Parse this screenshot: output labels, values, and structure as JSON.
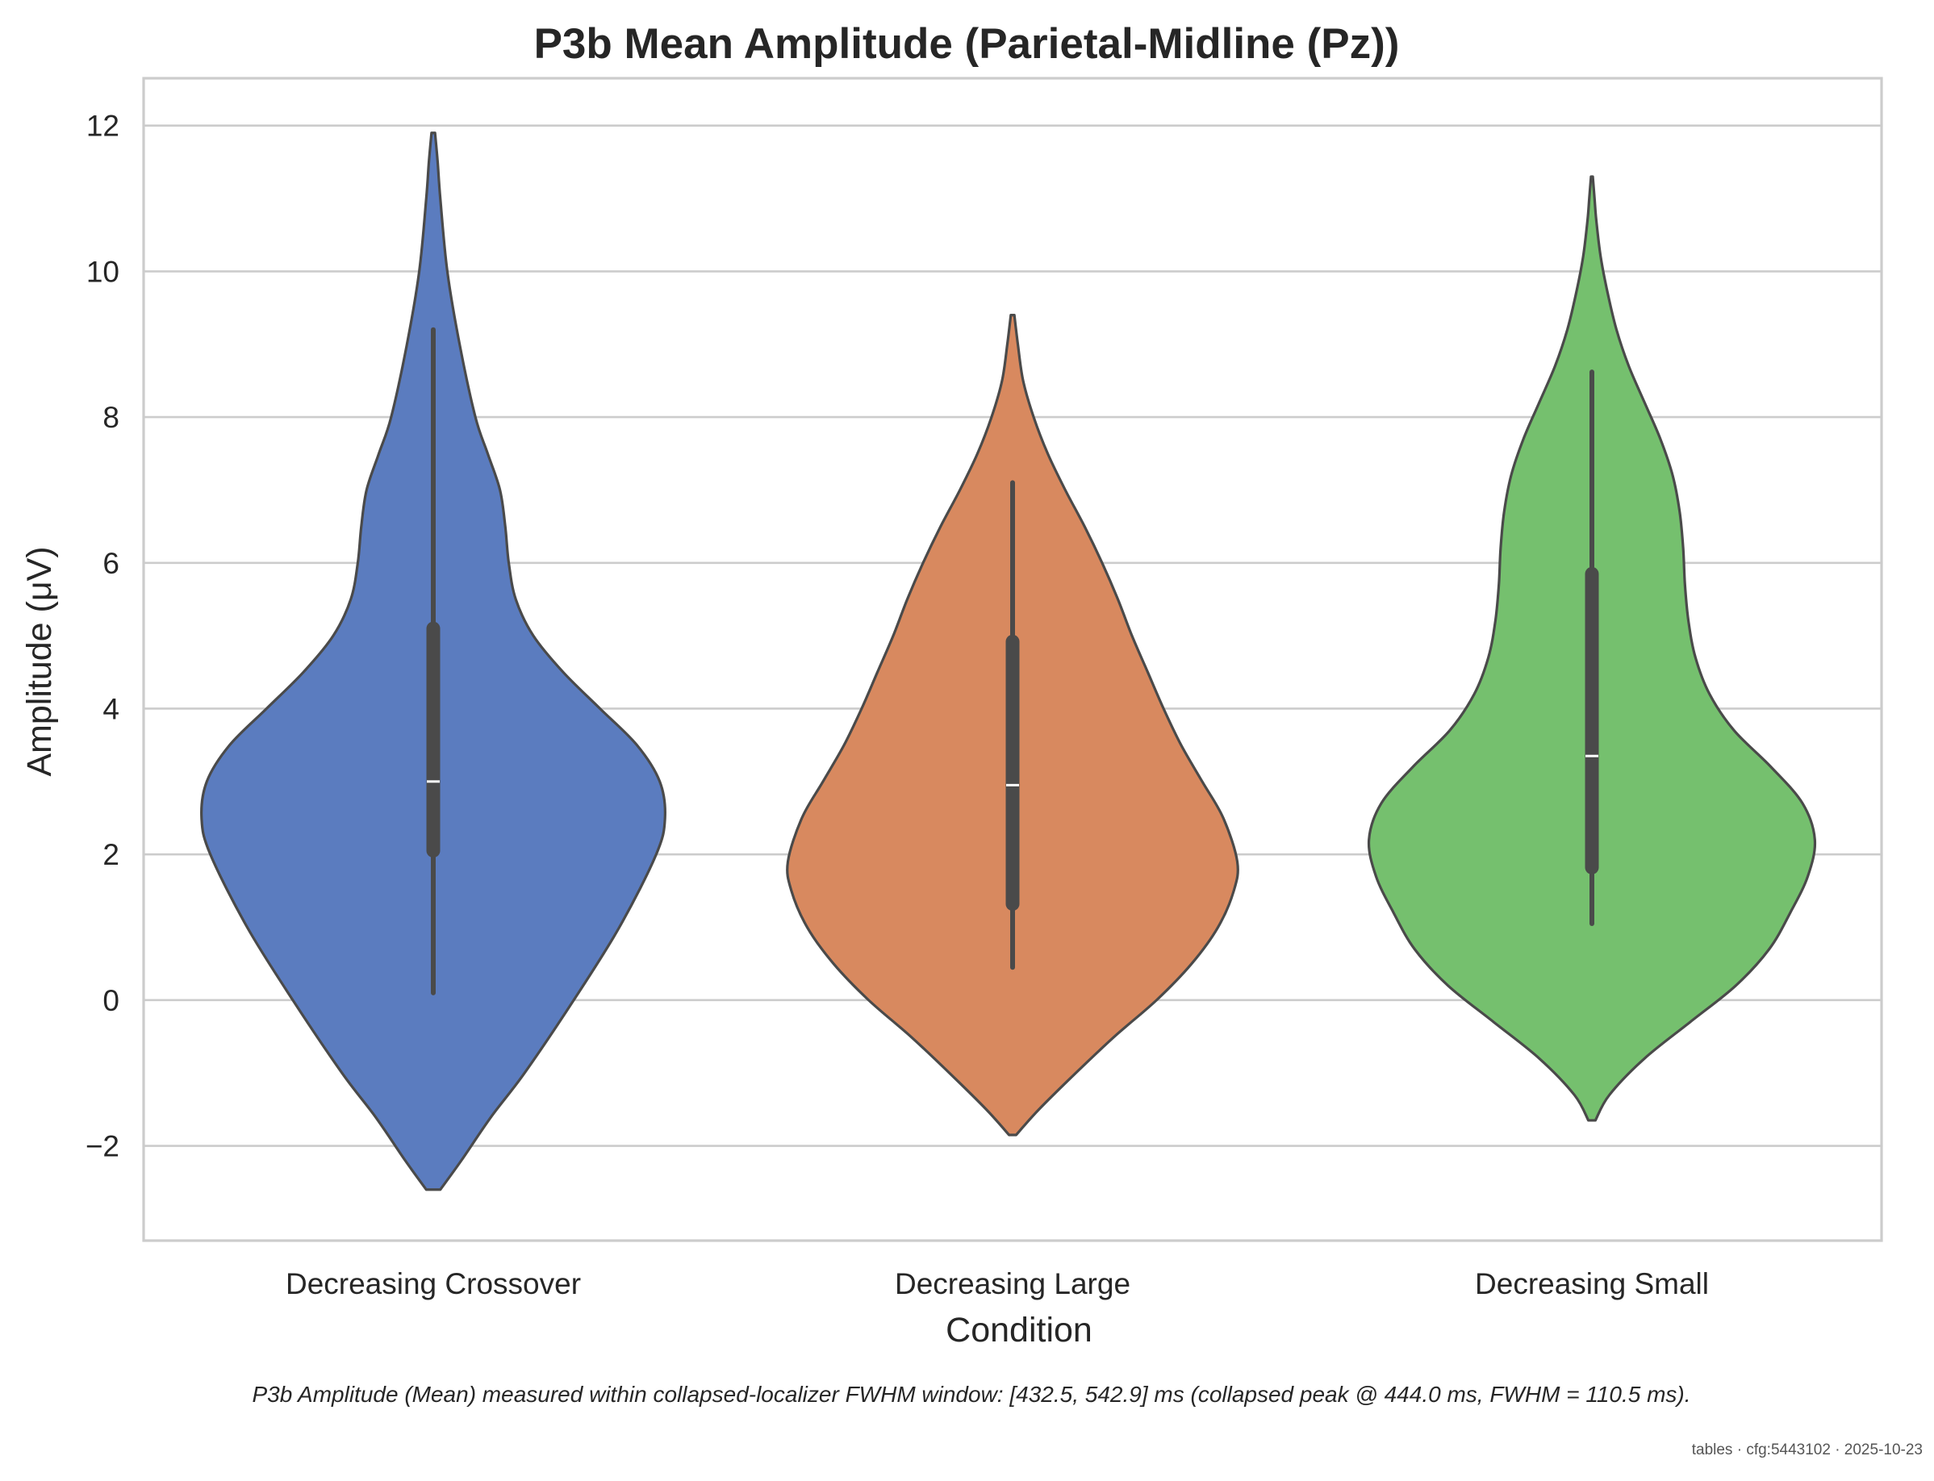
{
  "chart_data": {
    "type": "violin",
    "title": "P3b Mean Amplitude (Parietal-Midline (Pz))",
    "xlabel": "Condition",
    "ylabel": "Amplitude (μV)",
    "ylim": [
      -3.3,
      12.65
    ],
    "yticks": [
      -2,
      0,
      2,
      4,
      6,
      8,
      10,
      12
    ],
    "ytick_labels": [
      "−2",
      "0",
      "2",
      "4",
      "6",
      "8",
      "10",
      "12"
    ],
    "grid": "horizontal",
    "categories": [
      "Decreasing Crossover",
      "Decreasing Large",
      "Decreasing Small"
    ],
    "series": [
      {
        "category": "Decreasing Crossover",
        "color": "#5b7cbf",
        "median": 3.0,
        "q1": 2.05,
        "q3": 5.1,
        "whisker_low": 0.1,
        "whisker_high": 9.2,
        "density": [
          [
            -2.6,
            0.04
          ],
          [
            -2.2,
            0.16
          ],
          [
            -1.6,
            0.33
          ],
          [
            -1.0,
            0.52
          ],
          [
            0.0,
            0.8
          ],
          [
            1.0,
            1.06
          ],
          [
            2.0,
            1.27
          ],
          [
            2.5,
            1.32
          ],
          [
            3.0,
            1.29
          ],
          [
            3.5,
            1.16
          ],
          [
            4.0,
            0.95
          ],
          [
            4.5,
            0.74
          ],
          [
            5.0,
            0.57
          ],
          [
            5.5,
            0.47
          ],
          [
            6.0,
            0.43
          ],
          [
            6.5,
            0.41
          ],
          [
            7.0,
            0.38
          ],
          [
            7.5,
            0.31
          ],
          [
            8.0,
            0.24
          ],
          [
            9.0,
            0.15
          ],
          [
            10.0,
            0.08
          ],
          [
            11.0,
            0.04
          ],
          [
            11.5,
            0.025
          ],
          [
            11.9,
            0.01
          ]
        ]
      },
      {
        "category": "Decreasing Large",
        "color": "#d8895f",
        "median": 2.95,
        "q1": 1.32,
        "q3": 4.92,
        "whisker_low": 0.45,
        "whisker_high": 7.1,
        "density": [
          [
            -1.85,
            0.02
          ],
          [
            -1.5,
            0.15
          ],
          [
            -1.0,
            0.36
          ],
          [
            -0.5,
            0.58
          ],
          [
            0.0,
            0.82
          ],
          [
            0.5,
            1.02
          ],
          [
            1.0,
            1.17
          ],
          [
            1.5,
            1.26
          ],
          [
            1.9,
            1.28
          ],
          [
            2.5,
            1.2
          ],
          [
            3.0,
            1.08
          ],
          [
            3.5,
            0.96
          ],
          [
            4.0,
            0.86
          ],
          [
            4.5,
            0.77
          ],
          [
            5.0,
            0.68
          ],
          [
            5.5,
            0.6
          ],
          [
            6.0,
            0.51
          ],
          [
            6.5,
            0.41
          ],
          [
            7.0,
            0.3
          ],
          [
            7.5,
            0.2
          ],
          [
            8.0,
            0.12
          ],
          [
            8.5,
            0.06
          ],
          [
            9.0,
            0.03
          ],
          [
            9.4,
            0.01
          ]
        ]
      },
      {
        "category": "Decreasing Small",
        "color": "#75c06e",
        "median": 3.35,
        "q1": 1.82,
        "q3": 5.85,
        "whisker_low": 1.05,
        "whisker_high": 8.62,
        "density": [
          [
            -1.65,
            0.02
          ],
          [
            -1.3,
            0.1
          ],
          [
            -0.8,
            0.3
          ],
          [
            -0.3,
            0.56
          ],
          [
            0.2,
            0.82
          ],
          [
            0.7,
            1.01
          ],
          [
            1.2,
            1.13
          ],
          [
            1.7,
            1.23
          ],
          [
            2.2,
            1.27
          ],
          [
            2.7,
            1.2
          ],
          [
            3.2,
            1.02
          ],
          [
            3.7,
            0.81
          ],
          [
            4.2,
            0.67
          ],
          [
            4.7,
            0.59
          ],
          [
            5.2,
            0.55
          ],
          [
            5.7,
            0.53
          ],
          [
            6.2,
            0.52
          ],
          [
            6.7,
            0.5
          ],
          [
            7.2,
            0.46
          ],
          [
            7.7,
            0.39
          ],
          [
            8.2,
            0.3
          ],
          [
            8.7,
            0.21
          ],
          [
            9.2,
            0.14
          ],
          [
            9.7,
            0.09
          ],
          [
            10.2,
            0.05
          ],
          [
            10.7,
            0.025
          ],
          [
            11.0,
            0.015
          ],
          [
            11.3,
            0.005
          ]
        ]
      }
    ]
  },
  "caption": "P3b Amplitude (Mean) measured within collapsed-localizer FWHM window: [432.5, 542.9] ms (collapsed peak @ 444.0 ms, FWHM = 110.5 ms).",
  "footer": "tables · cfg:5443102 · 2025-10-23"
}
